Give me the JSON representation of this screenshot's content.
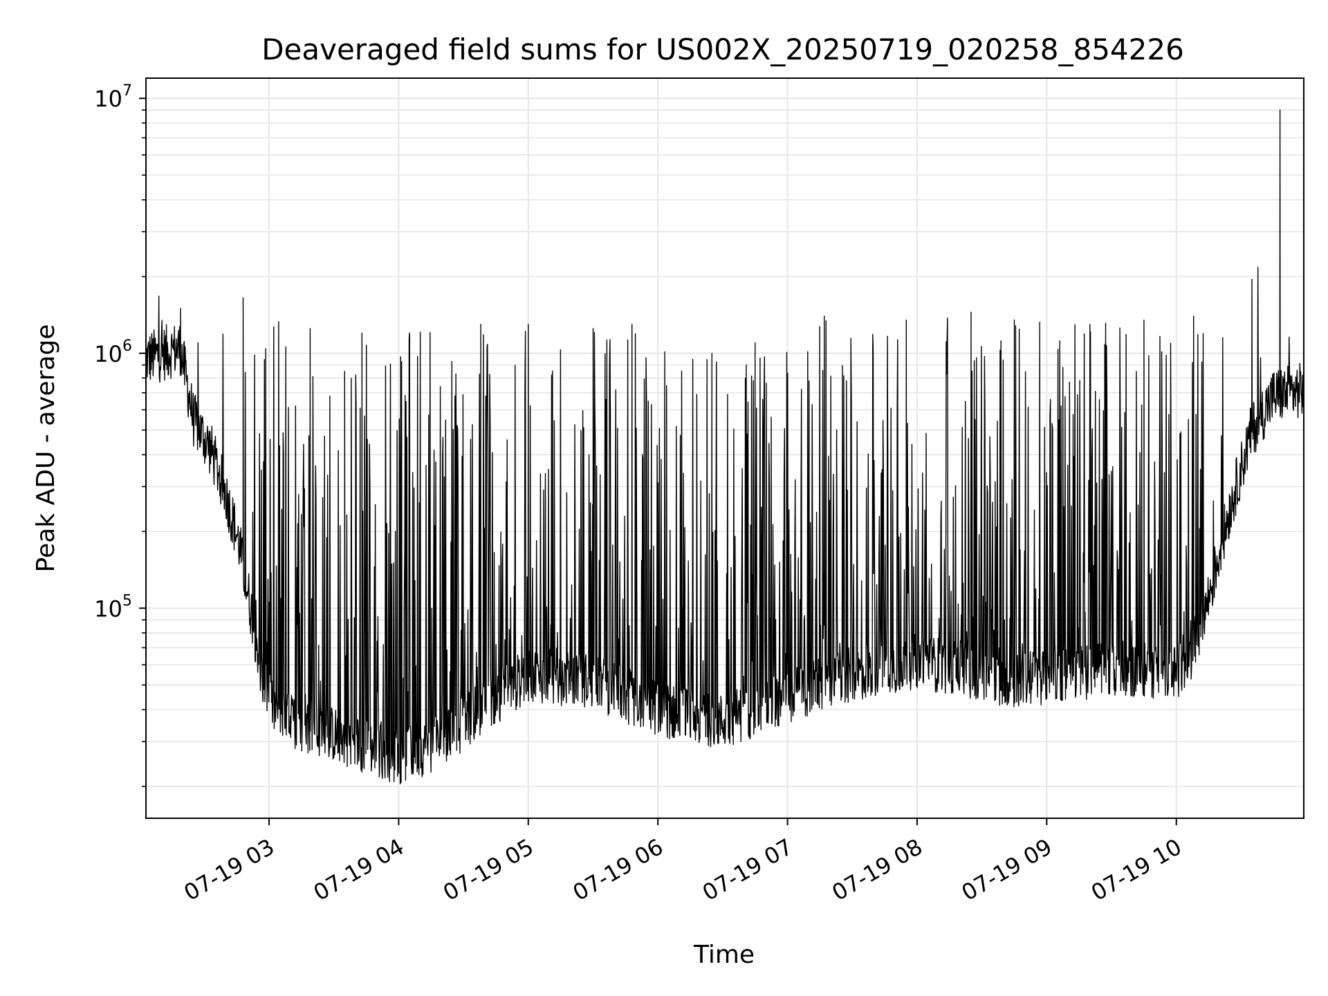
{
  "chart_data": {
    "type": "line",
    "title": "Deaveraged field sums for US002X_20250719_020258_854226",
    "xlabel": "Time",
    "ylabel": "Peak ADU - average",
    "y_scale": "log",
    "ylim": [
      15000,
      12000000
    ],
    "xlim": [
      "2025-07-19 02:03",
      "2025-07-19 10:59"
    ],
    "x_ticks": [
      {
        "label": "07-19 03",
        "time": "2025-07-19 03:00"
      },
      {
        "label": "07-19 04",
        "time": "2025-07-19 04:00"
      },
      {
        "label": "07-19 05",
        "time": "2025-07-19 05:00"
      },
      {
        "label": "07-19 06",
        "time": "2025-07-19 06:00"
      },
      {
        "label": "07-19 07",
        "time": "2025-07-19 07:00"
      },
      {
        "label": "07-19 08",
        "time": "2025-07-19 08:00"
      },
      {
        "label": "07-19 09",
        "time": "2025-07-19 09:00"
      },
      {
        "label": "07-19 10",
        "time": "2025-07-19 10:00"
      }
    ],
    "y_ticks": [
      {
        "base": "10",
        "exp": "5",
        "value": 100000
      },
      {
        "base": "10",
        "exp": "6",
        "value": 1000000
      },
      {
        "base": "10",
        "exp": "7",
        "value": 10000000
      }
    ],
    "grid": true,
    "legend": "none",
    "colors": {
      "line": "#000000",
      "grid": "#e6e6e6",
      "axes": "#000000"
    },
    "series": [
      {
        "baseline": [
          {
            "x": "2025-07-19 02:03",
            "y": 950000
          },
          {
            "x": "2025-07-19 02:19",
            "y": 1050000
          },
          {
            "x": "2025-07-19 02:25",
            "y": 550000
          },
          {
            "x": "2025-07-19 02:33",
            "y": 420000
          },
          {
            "x": "2025-07-19 02:40",
            "y": 280000
          },
          {
            "x": "2025-07-19 02:46",
            "y": 180000
          },
          {
            "x": "2025-07-19 02:52",
            "y": 95000
          },
          {
            "x": "2025-07-19 02:58",
            "y": 48000
          },
          {
            "x": "2025-07-19 03:05",
            "y": 37000
          },
          {
            "x": "2025-07-19 03:30",
            "y": 32000
          },
          {
            "x": "2025-07-19 04:00",
            "y": 26000
          },
          {
            "x": "2025-07-19 04:20",
            "y": 30000
          },
          {
            "x": "2025-07-19 04:40",
            "y": 42000
          },
          {
            "x": "2025-07-19 05:00",
            "y": 55000
          },
          {
            "x": "2025-07-19 05:30",
            "y": 52000
          },
          {
            "x": "2025-07-19 06:00",
            "y": 40000
          },
          {
            "x": "2025-07-19 06:30",
            "y": 36000
          },
          {
            "x": "2025-07-19 07:00",
            "y": 45000
          },
          {
            "x": "2025-07-19 07:30",
            "y": 55000
          },
          {
            "x": "2025-07-19 08:00",
            "y": 62000
          },
          {
            "x": "2025-07-19 08:20",
            "y": 58000
          },
          {
            "x": "2025-07-19 08:45",
            "y": 52000
          },
          {
            "x": "2025-07-19 09:00",
            "y": 54000
          },
          {
            "x": "2025-07-19 09:30",
            "y": 58000
          },
          {
            "x": "2025-07-19 10:00",
            "y": 56000
          },
          {
            "x": "2025-07-19 10:08",
            "y": 70000
          },
          {
            "x": "2025-07-19 10:15",
            "y": 110000
          },
          {
            "x": "2025-07-19 10:25",
            "y": 250000
          },
          {
            "x": "2025-07-19 10:35",
            "y": 500000
          },
          {
            "x": "2025-07-19 10:45",
            "y": 680000
          },
          {
            "x": "2025-07-19 10:59",
            "y": 720000
          }
        ],
        "spikes": [
          {
            "x": "2025-07-19 02:09",
            "y": 1600000
          },
          {
            "x": "2025-07-19 02:19",
            "y": 1500000
          },
          {
            "x": "2025-07-19 02:48",
            "y": 1650000
          },
          {
            "x": "2025-07-19 03:19",
            "y": 1250000
          },
          {
            "x": "2025-07-19 03:35",
            "y": 850000
          },
          {
            "x": "2025-07-19 03:43",
            "y": 1200000
          },
          {
            "x": "2025-07-19 04:05",
            "y": 1200000
          },
          {
            "x": "2025-07-19 04:38",
            "y": 1300000
          },
          {
            "x": "2025-07-19 05:00",
            "y": 1300000
          },
          {
            "x": "2025-07-19 05:30",
            "y": 1250000
          },
          {
            "x": "2025-07-19 05:48",
            "y": 1300000
          },
          {
            "x": "2025-07-19 06:25",
            "y": 1000000
          },
          {
            "x": "2025-07-19 06:45",
            "y": 1100000
          },
          {
            "x": "2025-07-19 07:17",
            "y": 1400000
          },
          {
            "x": "2025-07-19 07:55",
            "y": 1350000
          },
          {
            "x": "2025-07-19 08:25",
            "y": 1450000
          },
          {
            "x": "2025-07-19 08:45",
            "y": 1350000
          },
          {
            "x": "2025-07-19 09:20",
            "y": 1300000
          },
          {
            "x": "2025-07-19 09:45",
            "y": 1350000
          },
          {
            "x": "2025-07-19 10:08",
            "y": 1400000
          },
          {
            "x": "2025-07-19 10:35",
            "y": 1950000
          },
          {
            "x": "2025-07-19 10:48",
            "y": 9000000
          }
        ]
      }
    ]
  }
}
